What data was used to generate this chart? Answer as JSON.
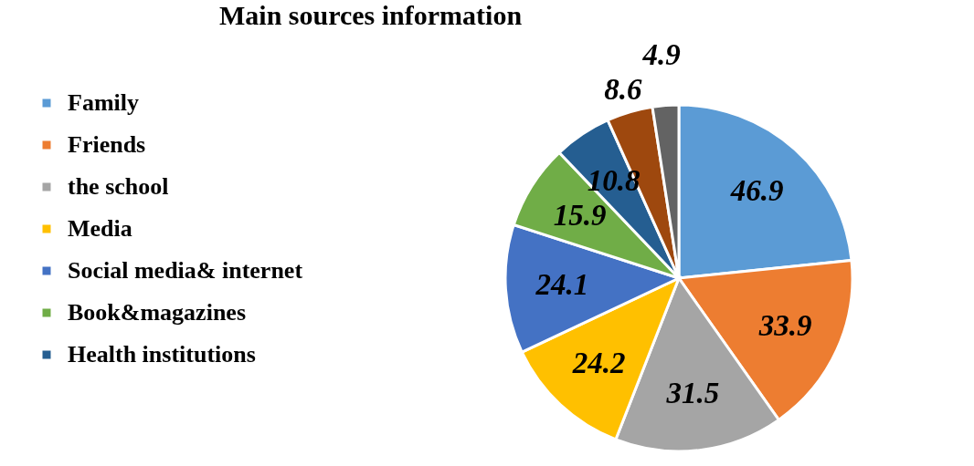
{
  "chart_data": {
    "type": "pie",
    "title": "Main sources information",
    "categories": [
      "Family",
      "Friends",
      "the school",
      "Media",
      "Social media& internet",
      "Book&magazines",
      "Health institutions",
      null,
      null
    ],
    "values": [
      46.9,
      33.9,
      31.5,
      24.2,
      24.1,
      15.9,
      10.8,
      8.6,
      4.9
    ],
    "colors": [
      "#5b9bd5",
      "#ed7d31",
      "#a5a5a5",
      "#ffc000",
      "#4472c4",
      "#70ad47",
      "#255e91",
      "#9e480e",
      "#636363"
    ],
    "data_labels": true,
    "legend": "left"
  }
}
